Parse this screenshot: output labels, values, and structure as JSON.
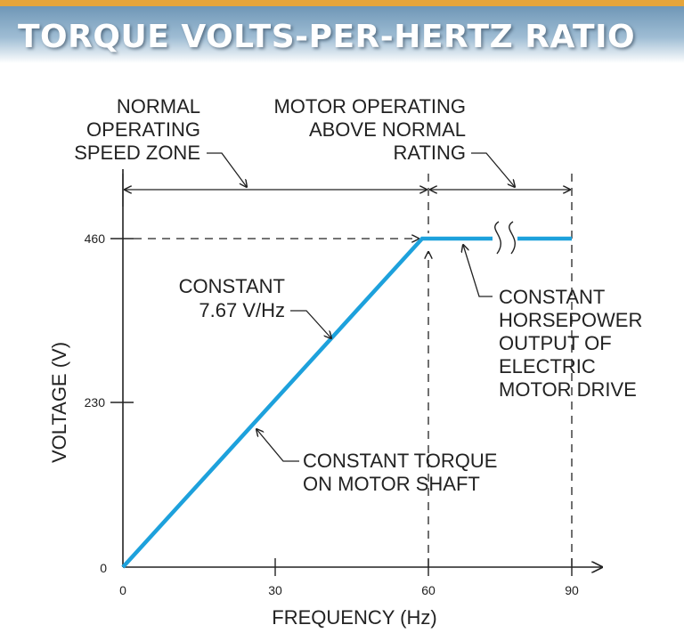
{
  "chart_data": {
    "type": "line",
    "title": "TORQUE VOLTS-PER-HERTZ RATIO",
    "xlabel": "FREQUENCY (Hz)",
    "ylabel": "VOLTAGE (V)",
    "xlim": [
      0,
      90
    ],
    "ylim": [
      0,
      460
    ],
    "x_ticks": [
      "0",
      "30",
      "60",
      "90"
    ],
    "y_ticks": [
      "0",
      "230",
      "460"
    ],
    "grid": false,
    "series": [
      {
        "x": [
          0,
          60,
          90
        ],
        "y": [
          0,
          460,
          460
        ]
      }
    ],
    "line_color": "#1da1dc",
    "annotations": {
      "normal_zone": [
        "NORMAL",
        "OPERATING",
        "SPEED ZONE"
      ],
      "above_rating": [
        "MOTOR OPERATING",
        "ABOVE NORMAL",
        "RATING"
      ],
      "constant_vhz": [
        "CONSTANT",
        "7.67 V/Hz"
      ],
      "constant_hp": [
        "CONSTANT",
        "HORSEPOWER",
        "OUTPUT OF",
        "ELECTRIC",
        "MOTOR DRIVE"
      ],
      "constant_torque": [
        "CONSTANT TORQUE",
        "ON MOTOR SHAFT"
      ]
    }
  }
}
